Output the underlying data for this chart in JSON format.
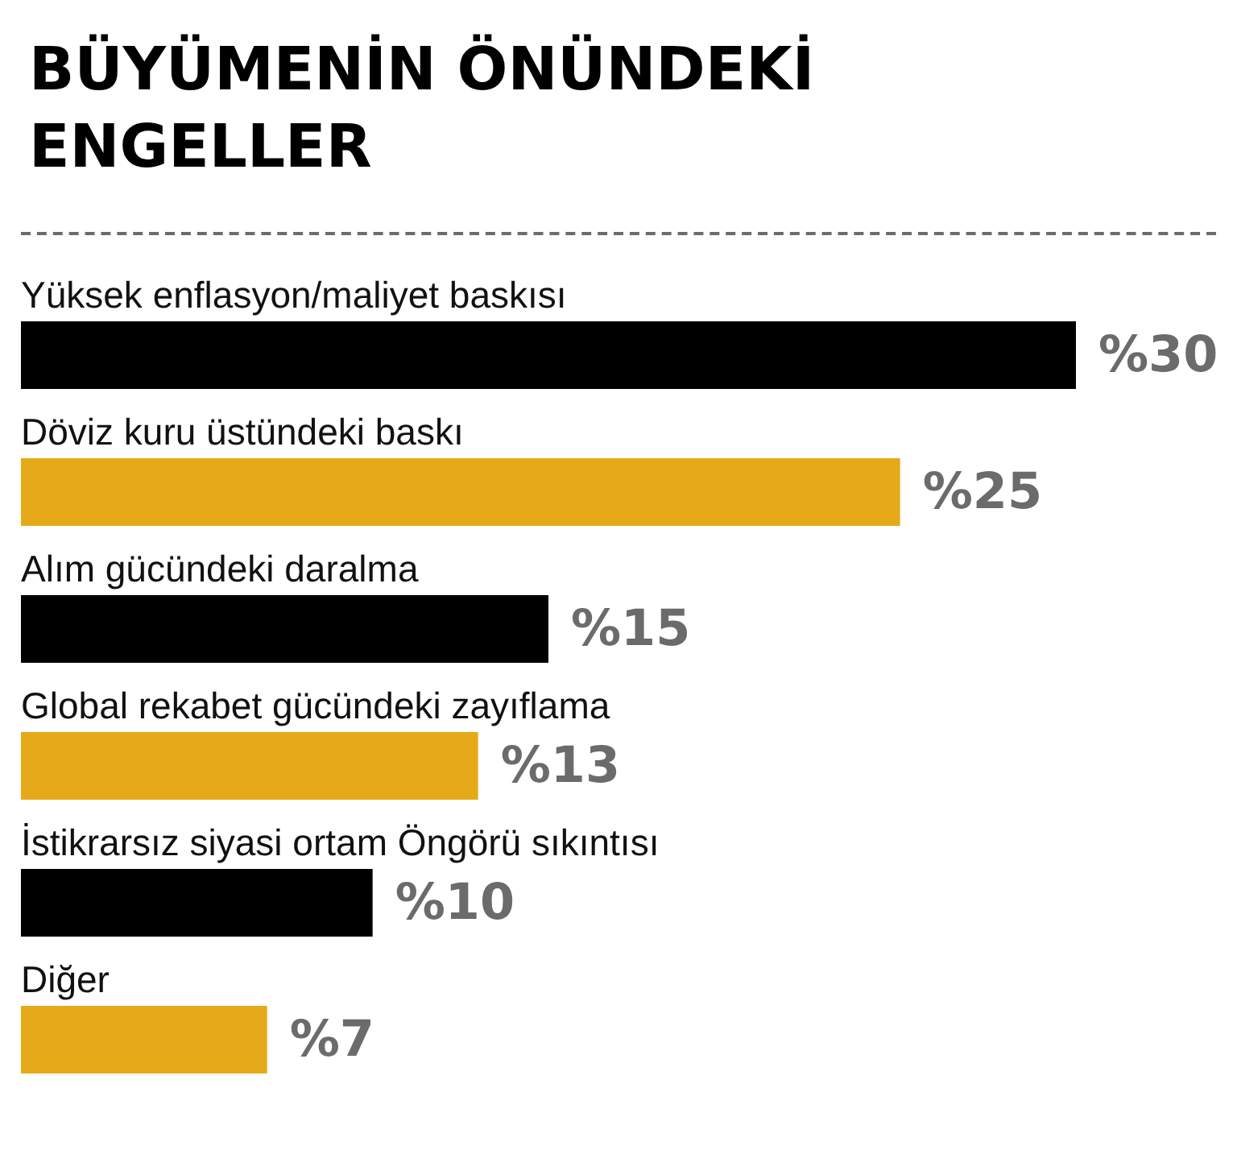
{
  "chart_data": {
    "type": "bar",
    "orientation": "horizontal",
    "title": "BÜYÜMENİN ÖNÜNDEKİ ENGELLER",
    "categories": [
      "Yüksek enflasyon/maliyet baskısı",
      "Döviz kuru üstündeki baskı",
      "Alım gücündeki daralma",
      "Global rekabet gücündeki zayıflama",
      "İstikrarsız siyasi ortam Öngörü sıkıntısı",
      "Diğer"
    ],
    "values": [
      30,
      25,
      15,
      13,
      10,
      7
    ],
    "colors": [
      "#000000",
      "#e6a919",
      "#000000",
      "#e6a919",
      "#000000",
      "#e6a919"
    ],
    "value_labels": [
      "%30",
      "%25",
      "%15",
      "%13",
      "%10",
      "%7"
    ],
    "tick_labels": "y"
  }
}
